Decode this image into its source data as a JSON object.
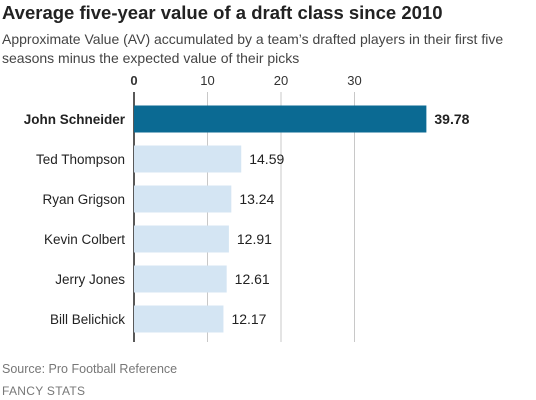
{
  "title": "Average five-year value of a draft class since 2010",
  "subtitle": "Approximate Value (AV) accumulated by a team’s drafted players in their first five seasons minus the expected value of their picks",
  "source": "Source: Pro Football Reference",
  "credit": "FANCY STATS",
  "colors": {
    "highlight": "#0b6a93",
    "bar": "#d4e5f3",
    "grid": "#c8c8c8"
  },
  "chart_data": {
    "type": "bar",
    "orientation": "horizontal",
    "categories": [
      "John Schneider",
      "Ted Thompson",
      "Ryan Grigson",
      "Kevin Colbert",
      "Jerry Jones",
      "Bill Belichick"
    ],
    "values": [
      39.78,
      14.59,
      13.24,
      12.91,
      12.61,
      12.17
    ],
    "value_labels": [
      "39.78",
      "14.59",
      "13.24",
      "12.91",
      "12.61",
      "12.17"
    ],
    "highlight_index": 0,
    "xticks": [
      0,
      10,
      20,
      30
    ],
    "xlim": [
      0,
      43
    ],
    "grid": true,
    "axis_position": "top"
  }
}
